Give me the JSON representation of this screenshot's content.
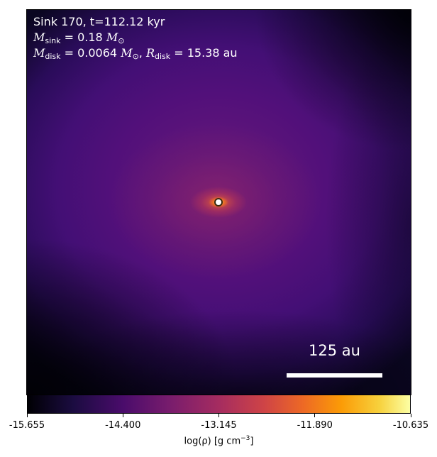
{
  "chart_data": {
    "type": "heatmap",
    "annotations": {
      "line1": "Sink 170, t=112.12 kyr",
      "m_sink_sym": "M",
      "m_sink_sub": "sink",
      "m_sink_val": " = 0.18 ",
      "m_disk_sym": "M",
      "m_disk_sub": "disk",
      "m_disk_val": " = 0.0064 ",
      "r_disk_sym": "R",
      "r_disk_sub": "disk",
      "r_disk_val": " = 15.38 au",
      "msun": "M",
      "odot": "⊙",
      "scale_bar": "125 au"
    },
    "colormap": "inferno",
    "colorbar": {
      "range": [
        -15.655,
        -10.635
      ],
      "ticks": [
        "-15.655",
        "-14.400",
        "-13.145",
        "-11.890",
        "-10.635"
      ],
      "label_main": "log(ρ) [g cm",
      "label_exp": "−3",
      "label_end": "]",
      "orientation": "horizontal"
    },
    "sink_marker": {
      "color": "#ffffff"
    }
  }
}
